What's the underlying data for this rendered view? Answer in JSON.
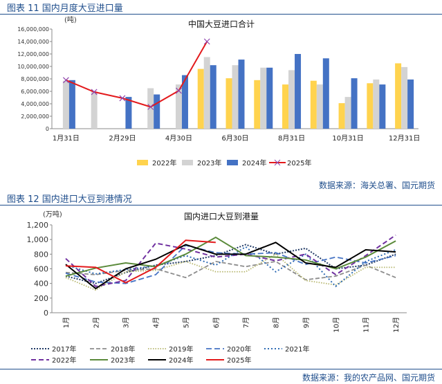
{
  "figure1": {
    "caption": "图表 11 国内月度大豆进口量",
    "source": "数据来源：海关总署、国元期货"
  },
  "figure2": {
    "caption": "图表 12 国内进口大豆到港情况",
    "source": "数据来源：我的农产品网、国元期货"
  },
  "colors": {
    "header": "#1f4e8c",
    "y2022": "#ffd34e",
    "y2023": "#d3d3d3",
    "y2024": "#4472c4",
    "y2025": "#e31a1c",
    "l2017": "#1f3864",
    "l2018": "#8c8c8c",
    "l2019": "#b5b56a",
    "l2020": "#4472c4",
    "l2021": "#2e6bb4",
    "l2022": "#7030a0",
    "l2023": "#5a8a3a"
  },
  "chart_data": [
    {
      "type": "bar",
      "title": "中国大豆进口合计",
      "unit": "(吨)",
      "ylim": [
        0,
        16000000
      ],
      "yticks": [
        "0",
        "2,000,000",
        "4,000,000",
        "6,000,000",
        "8,000,000",
        "10,000,000",
        "12,000,000",
        "14,000,000",
        "16,000,000"
      ],
      "categories": [
        "1月31日",
        "",
        "2月29日",
        "",
        "4月30日",
        "",
        "6月30日",
        "",
        "8月31日",
        "",
        "10月31日",
        "",
        "12月31日"
      ],
      "series": [
        {
          "name": "2022年",
          "kind": "bar",
          "values": [
            null,
            null,
            null,
            null,
            null,
            9600000,
            8100000,
            7800000,
            7100000,
            7700000,
            4100000,
            7300000,
            10500000
          ]
        },
        {
          "name": "2023年",
          "kind": "bar",
          "values": [
            7700000,
            6000000,
            null,
            6500000,
            7100000,
            11500000,
            10200000,
            9800000,
            9400000,
            7100000,
            5100000,
            7900000,
            9900000
          ]
        },
        {
          "name": "2024年",
          "kind": "bar",
          "values": [
            7800000,
            null,
            5100000,
            5500000,
            8600000,
            10200000,
            11100000,
            9800000,
            12000000,
            11300000,
            8100000,
            7100000,
            7900000
          ]
        },
        {
          "name": "2025年",
          "kind": "line",
          "values": [
            7800000,
            5900000,
            4900000,
            3500000,
            6100000,
            14000000,
            null,
            null,
            null,
            null,
            null,
            null,
            null
          ]
        }
      ]
    },
    {
      "type": "line",
      "title": "国内进口大豆到港量",
      "unit": "(万吨)",
      "ylim": [
        0,
        1200
      ],
      "yticks": [
        "0",
        "200",
        "400",
        "600",
        "800",
        "1,000",
        "1,200"
      ],
      "categories": [
        "1月",
        "2月",
        "3月",
        "4月",
        "5月",
        "6月",
        "7月",
        "8月",
        "9月",
        "10月",
        "11月",
        "12月"
      ],
      "series": [
        {
          "name": "2017年",
          "values": [
            500,
            400,
            550,
            650,
            700,
            780,
            930,
            800,
            880,
            600,
            650,
            800
          ]
        },
        {
          "name": "2018年",
          "values": [
            550,
            520,
            580,
            600,
            480,
            700,
            630,
            700,
            450,
            500,
            650,
            480
          ]
        },
        {
          "name": "2019年",
          "values": [
            480,
            310,
            560,
            580,
            700,
            560,
            560,
            800,
            440,
            380,
            620,
            620
          ]
        },
        {
          "name": "2020年",
          "values": [
            540,
            420,
            400,
            520,
            920,
            820,
            800,
            820,
            660,
            760,
            680,
            780
          ]
        },
        {
          "name": "2021年",
          "values": [
            650,
            530,
            590,
            640,
            780,
            650,
            900,
            560,
            800,
            360,
            700,
            860
          ]
        },
        {
          "name": "2022年",
          "values": [
            740,
            360,
            440,
            950,
            870,
            760,
            800,
            710,
            800,
            520,
            780,
            1060
          ]
        },
        {
          "name": "2023年",
          "values": [
            500,
            610,
            680,
            630,
            800,
            1030,
            780,
            760,
            720,
            600,
            760,
            980
          ]
        },
        {
          "name": "2024年",
          "values": [
            660,
            330,
            600,
            730,
            930,
            800,
            800,
            960,
            680,
            620,
            860,
            830
          ]
        },
        {
          "name": "2025年",
          "values": [
            640,
            620,
            410,
            620,
            990,
            960,
            null,
            null,
            null,
            null,
            null,
            null
          ]
        }
      ]
    }
  ]
}
